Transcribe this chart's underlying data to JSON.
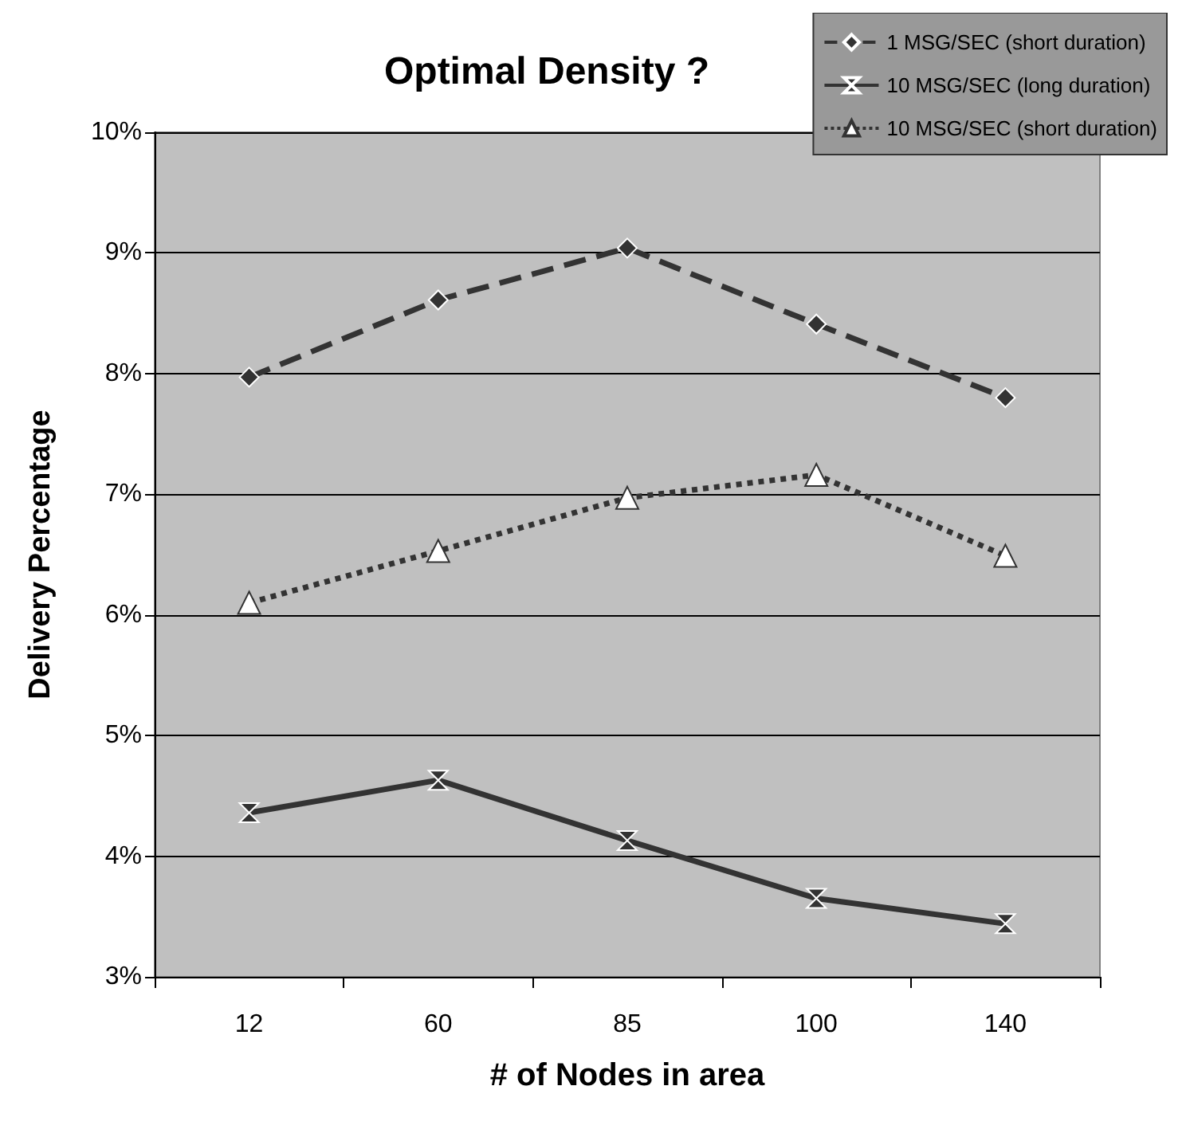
{
  "chart_data": {
    "type": "line",
    "title": "Optimal Density ?",
    "xlabel": "# of Nodes in area",
    "ylabel": "Delivery Percentage",
    "categories": [
      "12",
      "60",
      "85",
      "100",
      "140"
    ],
    "series": [
      {
        "name": "1 MSG/SEC (short duration)",
        "color": "#333333",
        "marker": "diamond",
        "line_style": "dashed",
        "values": [
          7.97,
          8.61,
          9.04,
          8.41,
          7.8
        ]
      },
      {
        "name": "10 MSG/SEC (long duration)",
        "color": "#333333",
        "marker": "cross",
        "line_style": "solid",
        "values": [
          4.36,
          4.63,
          4.13,
          3.65,
          3.44
        ]
      },
      {
        "name": "10 MSG/SEC (short duration)",
        "color": "#333333",
        "marker": "triangle",
        "line_style": "dotted",
        "values": [
          6.1,
          6.53,
          6.97,
          7.16,
          6.49
        ]
      }
    ],
    "ylim": [
      3,
      10
    ],
    "yticks": [
      {
        "value": 3,
        "label": "3%"
      },
      {
        "value": 4,
        "label": "4%"
      },
      {
        "value": 5,
        "label": "5%"
      },
      {
        "value": 6,
        "label": "6%"
      },
      {
        "value": 7,
        "label": "7%"
      },
      {
        "value": 8,
        "label": "8%"
      },
      {
        "value": 9,
        "label": "9%"
      },
      {
        "value": 10,
        "label": "10%"
      }
    ],
    "grid": "y",
    "legend": "top right"
  }
}
